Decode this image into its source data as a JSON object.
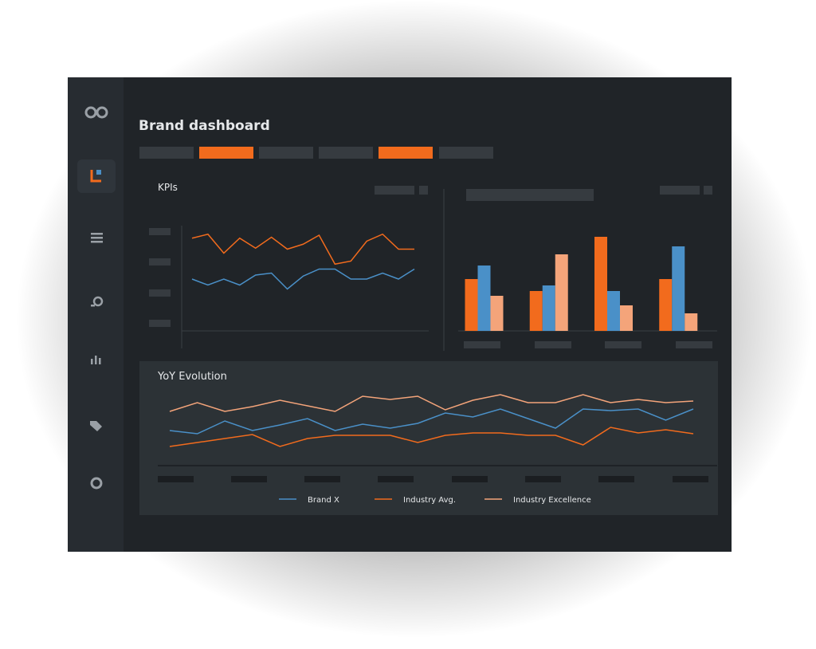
{
  "header": {
    "title": "Brand dashboard"
  },
  "chart_data": [
    {
      "type": "line",
      "title": "KPIs",
      "ylim": [
        0,
        100
      ],
      "series": [
        {
          "color": "#f26b1d",
          "values": [
            93,
            97,
            78,
            93,
            83,
            94,
            82,
            87,
            96,
            67,
            70,
            90,
            97,
            82,
            82
          ]
        },
        {
          "color": "#4a90c8",
          "values": [
            52,
            46,
            52,
            46,
            56,
            58,
            42,
            55,
            62,
            62,
            52,
            52,
            58,
            52,
            62
          ]
        }
      ]
    },
    {
      "type": "bar",
      "ylim": [
        0,
        125
      ],
      "categories": [
        null,
        null,
        null,
        null
      ],
      "series": [
        {
          "color": "#f26b1d",
          "values": [
            65,
            50,
            118,
            65
          ]
        },
        {
          "color": "#4a90c8",
          "values": [
            82,
            57,
            50,
            106
          ]
        },
        {
          "color": "#f4a47a",
          "values": [
            44,
            96,
            32,
            22
          ]
        }
      ]
    },
    {
      "type": "line",
      "title": "YoY Evolution",
      "ylim": [
        0,
        100
      ],
      "series": [
        {
          "name": "Brand X",
          "color": "#4a90c8",
          "values": [
            44,
            40,
            56,
            44,
            51,
            59,
            44,
            52,
            47,
            53,
            66,
            61,
            71,
            59,
            47,
            71,
            69,
            71,
            57,
            71
          ]
        },
        {
          "name": "Industry Avg.",
          "color": "#f26b1d",
          "values": [
            24,
            29,
            34,
            39,
            24,
            34,
            38,
            38,
            38,
            29,
            38,
            41,
            41,
            38,
            38,
            26,
            48,
            41,
            45,
            40
          ]
        },
        {
          "name": "Industry Excellence",
          "color": "#f4a47a",
          "values": [
            68,
            79,
            68,
            74,
            82,
            75,
            68,
            87,
            83,
            87,
            70,
            82,
            89,
            79,
            79,
            89,
            79,
            83,
            79,
            81
          ]
        }
      ]
    }
  ]
}
